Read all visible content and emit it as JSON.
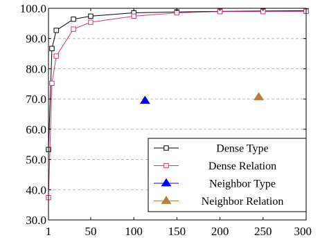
{
  "chart_data": {
    "type": "line",
    "title": "",
    "xlabel": "",
    "ylabel": "",
    "xlim": [
      1,
      300
    ],
    "ylim": [
      30,
      100
    ],
    "x_ticks": [
      1,
      50,
      100,
      150,
      200,
      250,
      300
    ],
    "x_tick_labels": [
      "1",
      "50",
      "100",
      "150",
      "200",
      "250",
      "300"
    ],
    "y_ticks": [
      30,
      40,
      50,
      60,
      70,
      80,
      90,
      100
    ],
    "y_tick_labels": [
      "30.0",
      "40.0",
      "50.0",
      "60.0",
      "70.0",
      "80.0",
      "90.0",
      "100.0"
    ],
    "grid": "horizontal-dashed",
    "legend_position": "bottom-right",
    "series": [
      {
        "name": "Dense Type",
        "color": "#000000",
        "marker": "square",
        "line": true,
        "points": [
          [
            1,
            53.3
          ],
          [
            5,
            86.7
          ],
          [
            10,
            92.7
          ],
          [
            30,
            96.4
          ],
          [
            50,
            97.4
          ],
          [
            100,
            98.5
          ],
          [
            150,
            98.8
          ],
          [
            200,
            99.0
          ],
          [
            250,
            99.1
          ],
          [
            300,
            99.2
          ]
        ]
      },
      {
        "name": "Dense Relation",
        "color": "#c8387a",
        "marker": "square",
        "line": true,
        "points": [
          [
            1,
            37.4
          ],
          [
            5,
            75.2
          ],
          [
            10,
            84.2
          ],
          [
            30,
            93.1
          ],
          [
            50,
            95.4
          ],
          [
            100,
            97.4
          ],
          [
            150,
            98.5
          ],
          [
            200,
            98.9
          ],
          [
            250,
            98.9
          ],
          [
            300,
            99.0
          ]
        ]
      },
      {
        "name": "Neighbor Type",
        "color": "#0000ff",
        "marker": "triangle",
        "line": false,
        "points": [
          [
            113,
            69.4
          ]
        ]
      },
      {
        "name": "Neighbor Relation",
        "color": "#b5803f",
        "marker": "triangle",
        "line": false,
        "points": [
          [
            245,
            70.6
          ]
        ]
      }
    ]
  }
}
